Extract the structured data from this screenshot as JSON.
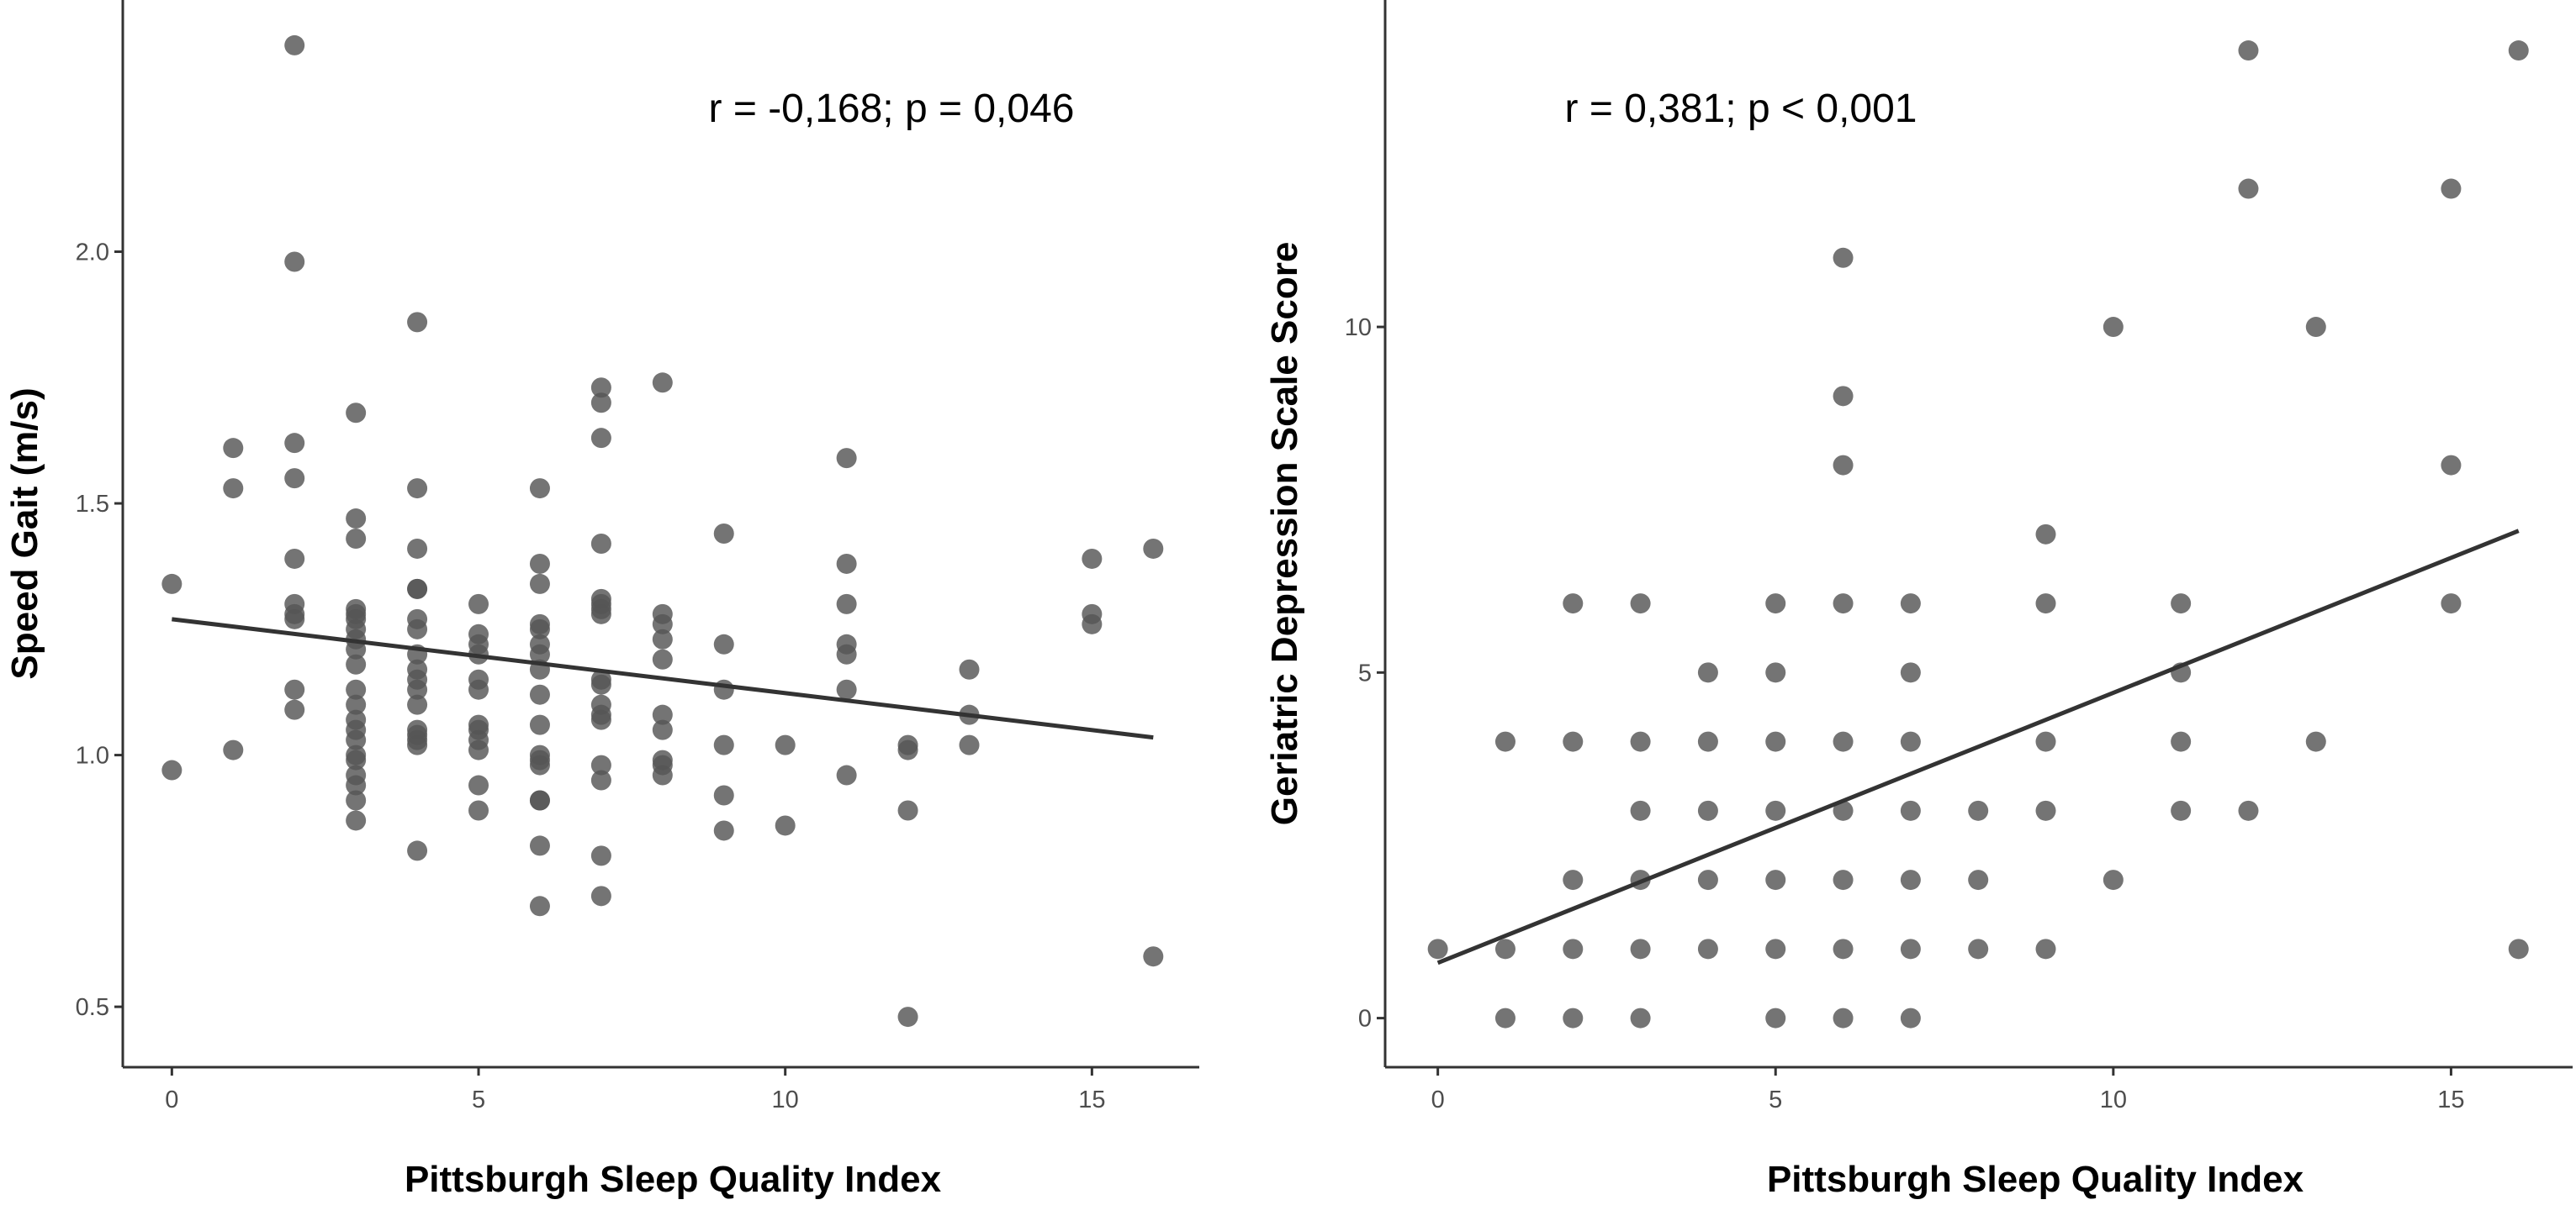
{
  "chart_data": [
    {
      "type": "scatter",
      "xlabel": "Pittsburgh Sleep Quality Index",
      "ylabel": "Speed Gait (m/s)",
      "annotation": "r = -0,168; p = 0,046",
      "xlim": [
        -0.8,
        16.75
      ],
      "ylim": [
        0.38,
        2.5
      ],
      "xticks": [
        0,
        5,
        10,
        15
      ],
      "yticks": [
        0.5,
        1.0,
        1.5,
        2.0
      ],
      "ytick_labels": [
        "0.5",
        "1.0",
        "1.5",
        "2.0"
      ],
      "grid": false,
      "point_color": "#555555",
      "line_color": "#333333",
      "regression_line": [
        [
          0,
          1.27
        ],
        [
          16,
          1.035
        ]
      ],
      "points": [
        [
          0,
          1.34
        ],
        [
          0,
          0.97
        ],
        [
          1,
          1.61
        ],
        [
          1,
          1.53
        ],
        [
          1,
          1.01
        ],
        [
          2,
          2.41
        ],
        [
          2,
          1.98
        ],
        [
          2,
          1.62
        ],
        [
          2,
          1.55
        ],
        [
          2,
          1.39
        ],
        [
          2,
          1.3
        ],
        [
          2,
          1.28
        ],
        [
          2,
          1.27
        ],
        [
          2,
          1.13
        ],
        [
          2,
          1.09
        ],
        [
          3,
          1.68
        ],
        [
          3,
          1.47
        ],
        [
          3,
          1.43
        ],
        [
          3,
          1.29
        ],
        [
          3,
          1.28
        ],
        [
          3,
          1.27
        ],
        [
          3,
          1.25
        ],
        [
          3,
          1.23
        ],
        [
          3,
          1.21
        ],
        [
          3,
          1.18
        ],
        [
          3,
          1.13
        ],
        [
          3,
          1.1
        ],
        [
          3,
          1.07
        ],
        [
          3,
          1.05
        ],
        [
          3,
          1.03
        ],
        [
          3,
          1.0
        ],
        [
          3,
          0.99
        ],
        [
          3,
          0.96
        ],
        [
          3,
          0.94
        ],
        [
          3,
          0.91
        ],
        [
          3,
          0.87
        ],
        [
          4,
          1.86
        ],
        [
          4,
          1.53
        ],
        [
          4,
          1.41
        ],
        [
          4,
          1.33
        ],
        [
          4,
          1.33
        ],
        [
          4,
          1.27
        ],
        [
          4,
          1.25
        ],
        [
          4,
          1.2
        ],
        [
          4,
          1.17
        ],
        [
          4,
          1.15
        ],
        [
          4,
          1.13
        ],
        [
          4,
          1.1
        ],
        [
          4,
          1.05
        ],
        [
          4,
          1.04
        ],
        [
          4,
          1.03
        ],
        [
          4,
          1.02
        ],
        [
          4,
          0.81
        ],
        [
          5,
          1.3
        ],
        [
          5,
          1.24
        ],
        [
          5,
          1.22
        ],
        [
          5,
          1.2
        ],
        [
          5,
          1.15
        ],
        [
          5,
          1.13
        ],
        [
          5,
          1.06
        ],
        [
          5,
          1.05
        ],
        [
          5,
          1.03
        ],
        [
          5,
          1.01
        ],
        [
          5,
          0.94
        ],
        [
          5,
          0.89
        ],
        [
          6,
          1.53
        ],
        [
          6,
          1.38
        ],
        [
          6,
          1.34
        ],
        [
          6,
          1.26
        ],
        [
          6,
          1.25
        ],
        [
          6,
          1.22
        ],
        [
          6,
          1.2
        ],
        [
          6,
          1.17
        ],
        [
          6,
          1.12
        ],
        [
          6,
          1.06
        ],
        [
          6,
          1.0
        ],
        [
          6,
          0.99
        ],
        [
          6,
          0.98
        ],
        [
          6,
          0.91
        ],
        [
          6,
          0.91
        ],
        [
          6,
          0.82
        ],
        [
          6,
          0.7
        ],
        [
          7,
          1.73
        ],
        [
          7,
          1.7
        ],
        [
          7,
          1.63
        ],
        [
          7,
          1.42
        ],
        [
          7,
          1.31
        ],
        [
          7,
          1.3
        ],
        [
          7,
          1.29
        ],
        [
          7,
          1.28
        ],
        [
          7,
          1.15
        ],
        [
          7,
          1.14
        ],
        [
          7,
          1.1
        ],
        [
          7,
          1.08
        ],
        [
          7,
          1.07
        ],
        [
          7,
          0.98
        ],
        [
          7,
          0.95
        ],
        [
          7,
          0.8
        ],
        [
          7,
          0.72
        ],
        [
          8,
          1.74
        ],
        [
          8,
          1.28
        ],
        [
          8,
          1.26
        ],
        [
          8,
          1.23
        ],
        [
          8,
          1.19
        ],
        [
          8,
          1.08
        ],
        [
          8,
          1.05
        ],
        [
          8,
          0.99
        ],
        [
          8,
          0.98
        ],
        [
          8,
          0.96
        ],
        [
          9,
          1.44
        ],
        [
          9,
          1.22
        ],
        [
          9,
          1.13
        ],
        [
          9,
          1.02
        ],
        [
          9,
          0.92
        ],
        [
          9,
          0.85
        ],
        [
          10,
          1.02
        ],
        [
          10,
          0.86
        ],
        [
          11,
          1.59
        ],
        [
          11,
          1.38
        ],
        [
          11,
          1.3
        ],
        [
          11,
          1.22
        ],
        [
          11,
          1.2
        ],
        [
          11,
          1.13
        ],
        [
          11,
          0.96
        ],
        [
          12,
          1.02
        ],
        [
          12,
          1.01
        ],
        [
          12,
          0.89
        ],
        [
          12,
          0.48
        ],
        [
          13,
          1.17
        ],
        [
          13,
          1.08
        ],
        [
          13,
          1.02
        ],
        [
          15,
          1.39
        ],
        [
          15,
          1.28
        ],
        [
          15,
          1.26
        ],
        [
          16,
          1.41
        ],
        [
          16,
          0.6
        ]
      ]
    },
    {
      "type": "scatter",
      "xlabel": "Pittsburgh Sleep Quality Index",
      "ylabel": "Geriatric Depression Scale Score",
      "annotation": "r = 0,381; p < 0,001",
      "xlim": [
        -0.78,
        16.8
      ],
      "ylim": [
        -0.71,
        14.73
      ],
      "xticks": [
        0,
        5,
        10,
        15
      ],
      "yticks": [
        0,
        5,
        10
      ],
      "ytick_labels": [
        "0",
        "5",
        "10"
      ],
      "grid": false,
      "point_color": "#555555",
      "line_color": "#333333",
      "regression_line": [
        [
          0,
          0.8
        ],
        [
          16,
          7.05
        ]
      ],
      "points": [
        [
          0,
          1
        ],
        [
          1,
          4
        ],
        [
          1,
          1
        ],
        [
          1,
          0
        ],
        [
          2,
          6
        ],
        [
          2,
          4
        ],
        [
          2,
          2
        ],
        [
          2,
          1
        ],
        [
          2,
          0
        ],
        [
          3,
          6
        ],
        [
          3,
          4
        ],
        [
          3,
          3
        ],
        [
          3,
          2
        ],
        [
          3,
          1
        ],
        [
          3,
          0
        ],
        [
          4,
          5
        ],
        [
          4,
          4
        ],
        [
          4,
          3
        ],
        [
          4,
          2
        ],
        [
          4,
          1
        ],
        [
          5,
          6
        ],
        [
          5,
          5
        ],
        [
          5,
          4
        ],
        [
          5,
          3
        ],
        [
          5,
          2
        ],
        [
          5,
          1
        ],
        [
          5,
          0
        ],
        [
          6,
          11
        ],
        [
          6,
          9
        ],
        [
          6,
          8
        ],
        [
          6,
          6
        ],
        [
          6,
          4
        ],
        [
          6,
          3
        ],
        [
          6,
          2
        ],
        [
          6,
          1
        ],
        [
          6,
          0
        ],
        [
          7,
          6
        ],
        [
          7,
          5
        ],
        [
          7,
          4
        ],
        [
          7,
          3
        ],
        [
          7,
          2
        ],
        [
          7,
          1
        ],
        [
          7,
          0
        ],
        [
          8,
          3
        ],
        [
          8,
          2
        ],
        [
          8,
          1
        ],
        [
          9,
          7
        ],
        [
          9,
          6
        ],
        [
          9,
          4
        ],
        [
          9,
          3
        ],
        [
          9,
          1
        ],
        [
          10,
          10
        ],
        [
          10,
          2
        ],
        [
          11,
          6
        ],
        [
          11,
          5
        ],
        [
          11,
          4
        ],
        [
          11,
          3
        ],
        [
          12,
          14
        ],
        [
          12,
          12
        ],
        [
          12,
          3
        ],
        [
          13,
          10
        ],
        [
          13,
          4
        ],
        [
          15,
          12
        ],
        [
          15,
          8
        ],
        [
          15,
          6
        ],
        [
          16,
          14
        ],
        [
          16,
          1
        ]
      ]
    }
  ]
}
